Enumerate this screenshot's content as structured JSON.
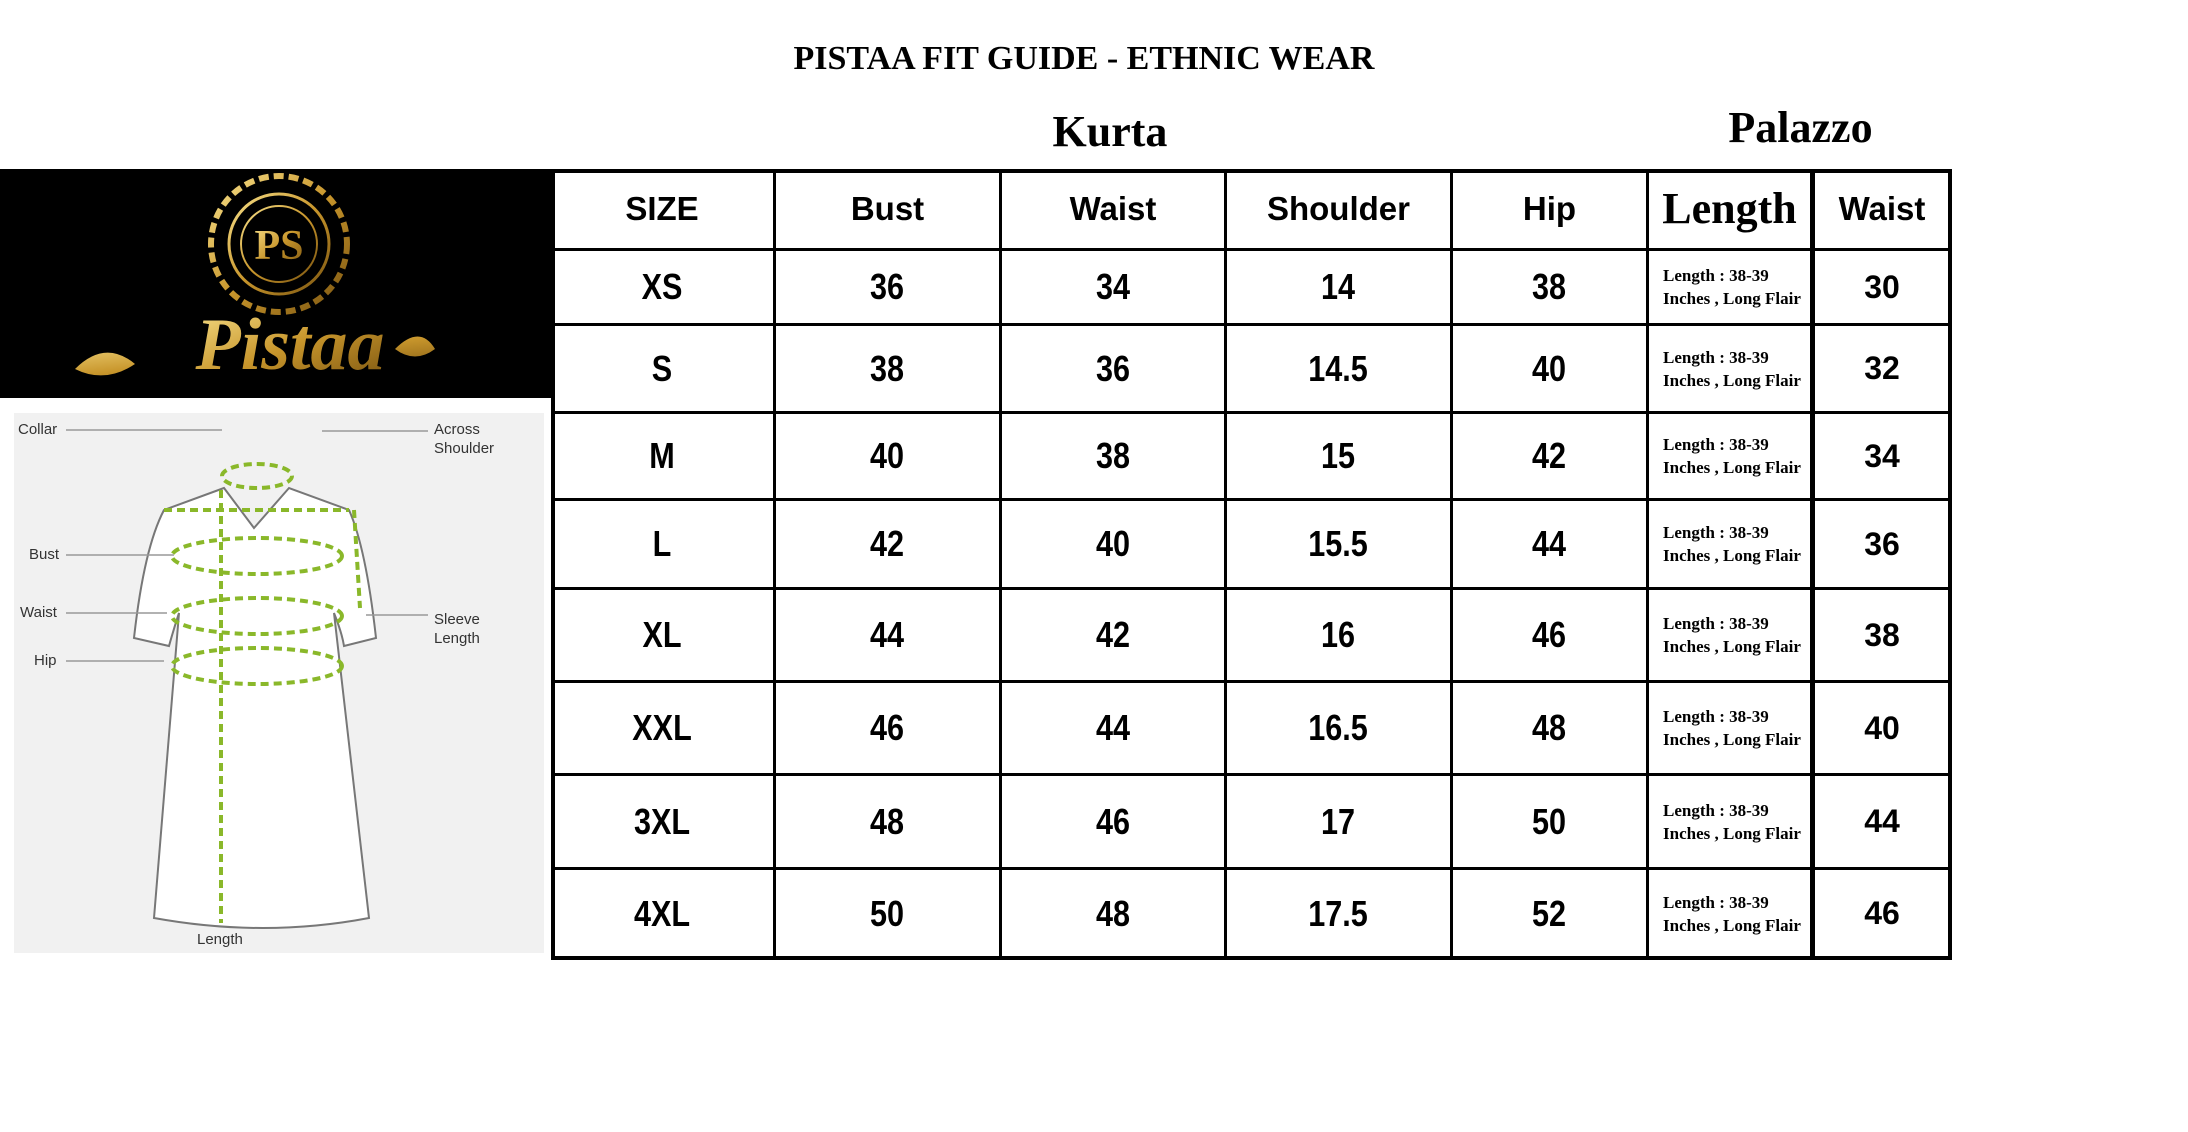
{
  "title": "PISTAA FIT GUIDE - ETHNIC WEAR",
  "sections": {
    "kurta": "Kurta",
    "palazzo": "Palazzo"
  },
  "logo": {
    "monogram": "PS",
    "brand": "Pistaa",
    "colors": {
      "background": "#000000",
      "gold": "#d4a63a"
    }
  },
  "diagram": {
    "labels": {
      "collar": "Collar",
      "across_shoulder": "Across Shoulder",
      "bust": "Bust",
      "waist": "Waist",
      "hip": "Hip",
      "sleeve_length": "Sleeve Length",
      "length": "Length"
    },
    "accent_color": "#8ab82a"
  },
  "table": {
    "headers": [
      "SIZE",
      "Bust",
      "Waist",
      "Shoulder",
      "Hip",
      "Length",
      "Waist"
    ],
    "rows": [
      [
        "XS",
        "36",
        "34",
        "14",
        "38",
        "Length : 38-39 Inches , Long Flair",
        "30"
      ],
      [
        "S",
        "38",
        "36",
        "14.5",
        "40",
        "Length : 38-39 Inches , Long Flair",
        "32"
      ],
      [
        "M",
        "40",
        "38",
        "15",
        "42",
        "Length : 38-39 Inches , Long Flair",
        "34"
      ],
      [
        "L",
        "42",
        "40",
        "15.5",
        "44",
        "Length : 38-39 Inches , Long Flair",
        "36"
      ],
      [
        "XL",
        "44",
        "42",
        "16",
        "46",
        "Length : 38-39 Inches , Long Flair",
        "38"
      ],
      [
        "XXL",
        "46",
        "44",
        "16.5",
        "48",
        "Length : 38-39 Inches , Long Flair",
        "40"
      ],
      [
        "3XL",
        "48",
        "46",
        "17",
        "50",
        "Length : 38-39 Inches , Long Flair",
        "44"
      ],
      [
        "4XL",
        "50",
        "48",
        "17.5",
        "52",
        "Length : 38-39 Inches , Long Flair",
        "46"
      ]
    ]
  }
}
